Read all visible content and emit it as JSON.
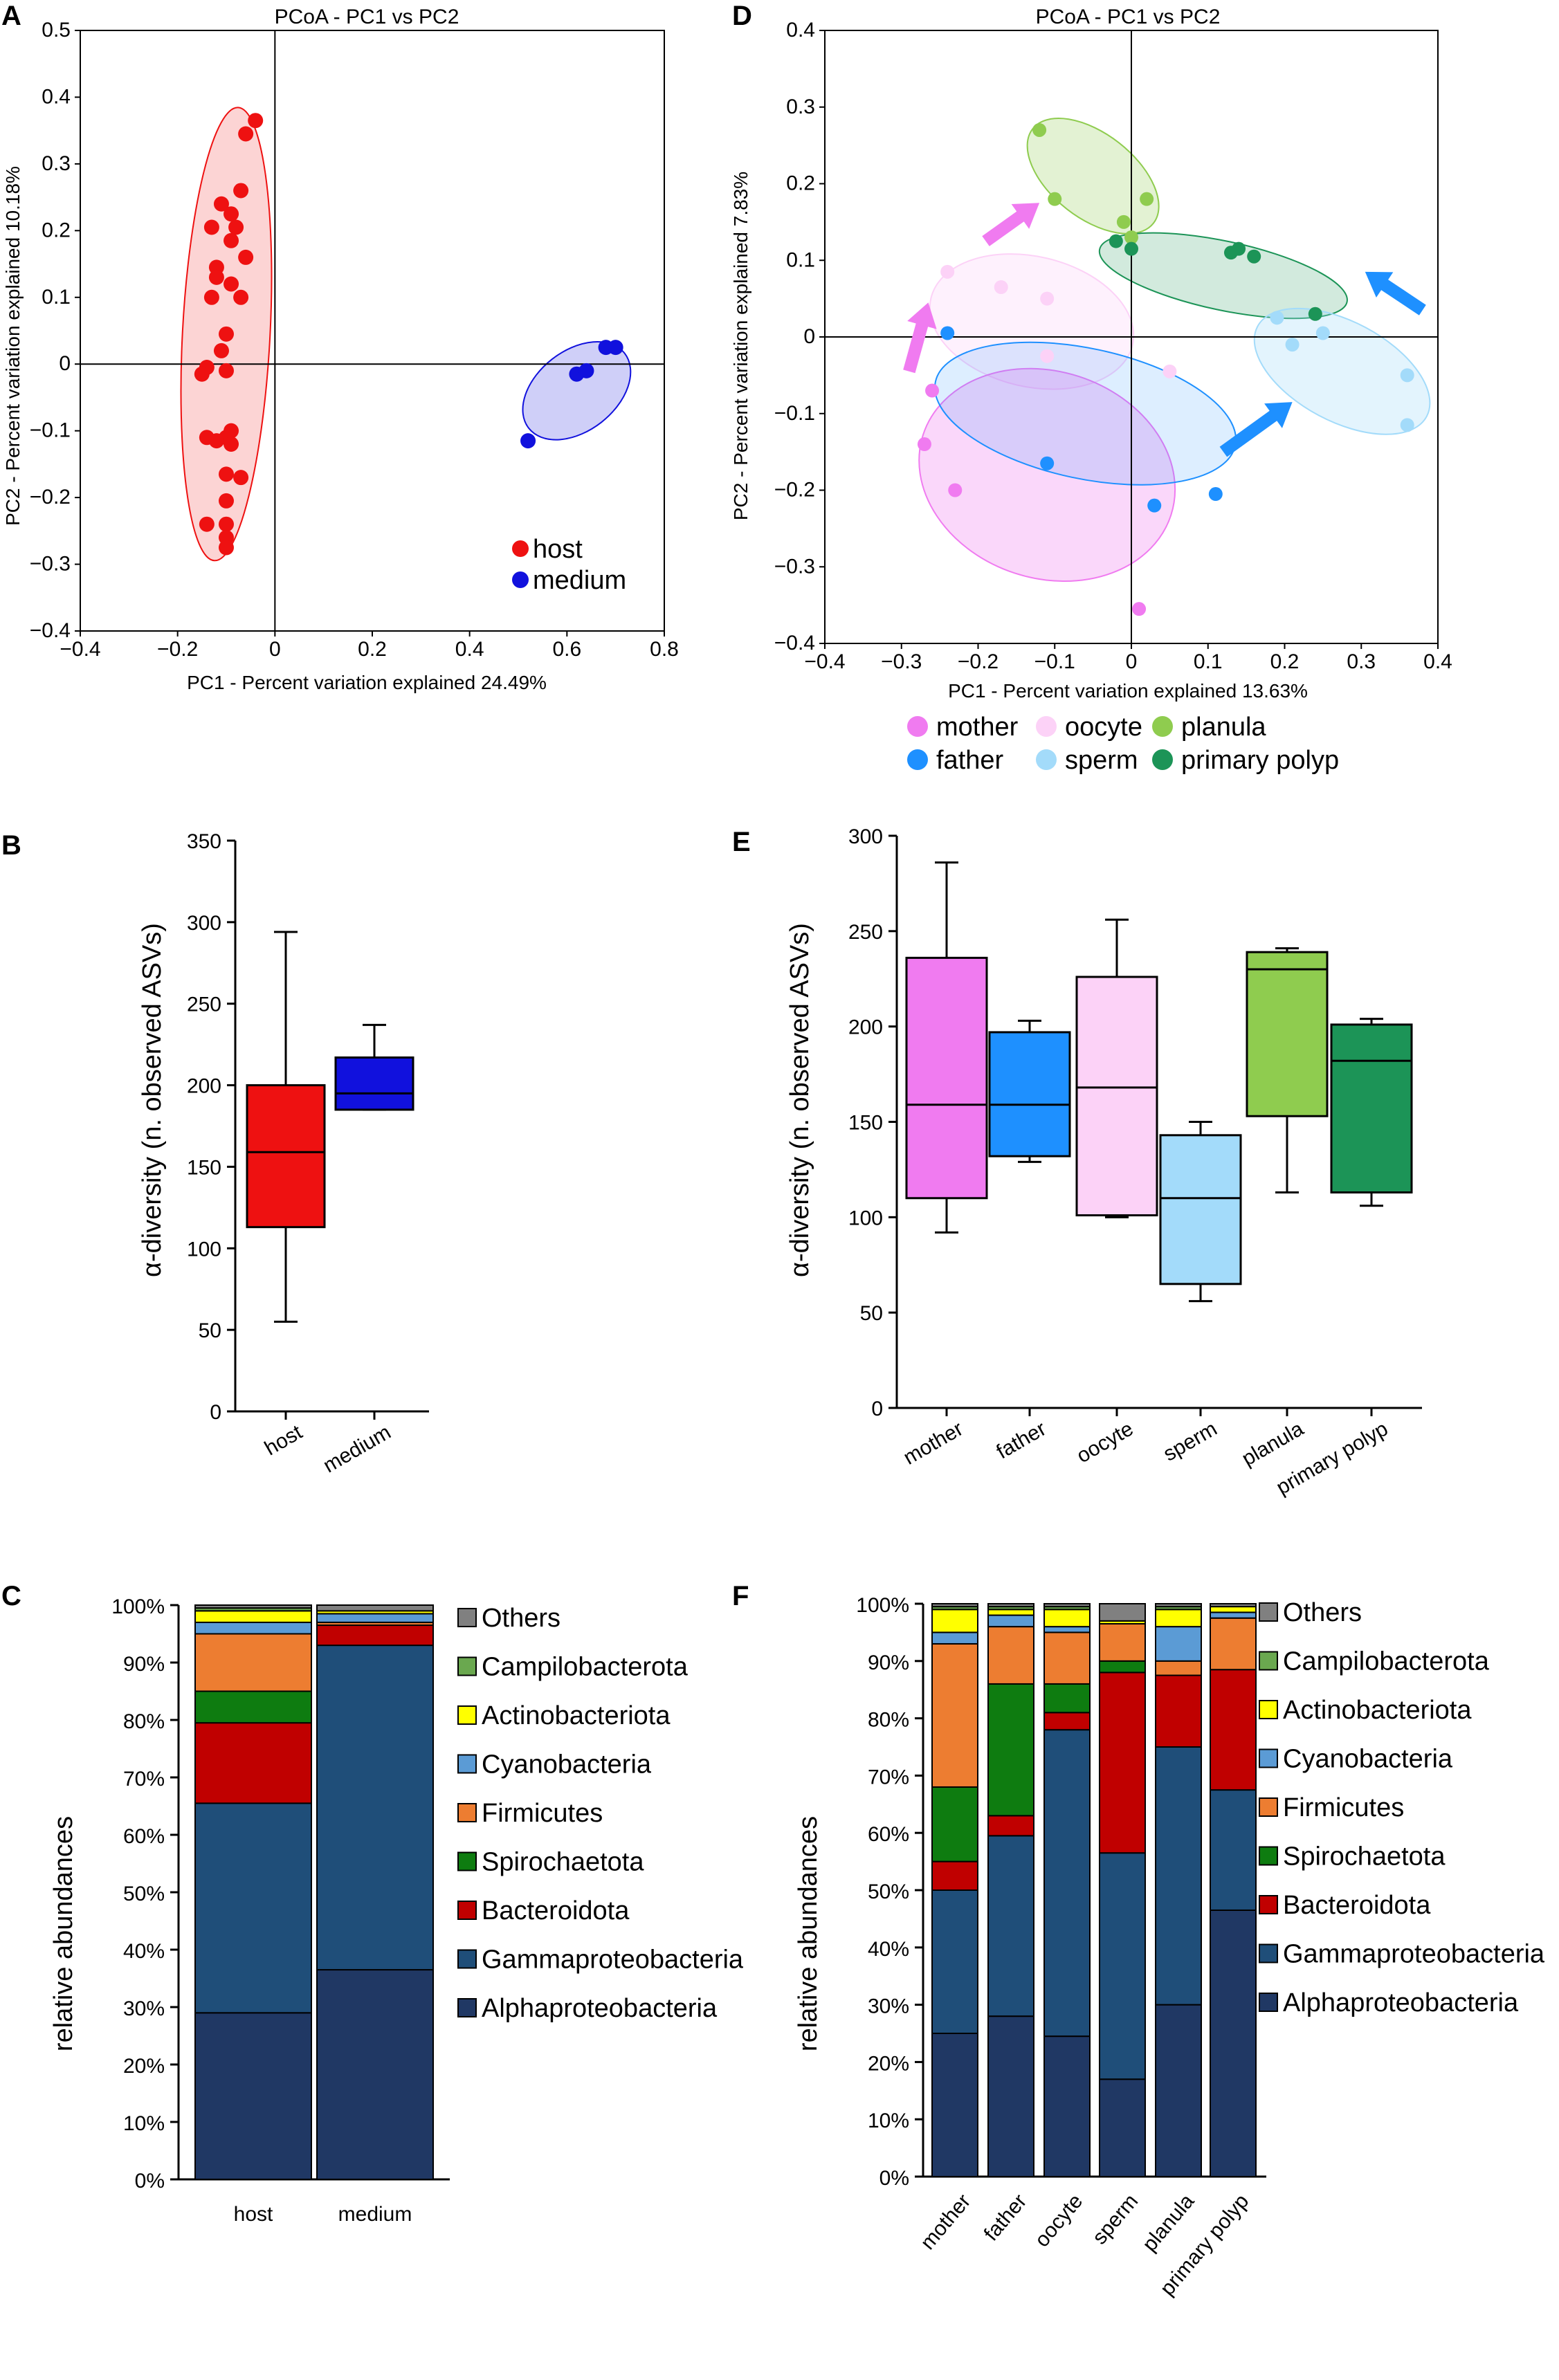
{
  "panels": {
    "A": {
      "letter": "A",
      "title": "PCoA - PC1 vs PC2",
      "xlabel": "PC1 - Percent variation explained 24.49%",
      "ylabel": "PC2 - Percent variation explained 10.18%",
      "xlim": [
        -0.4,
        0.8
      ],
      "ylim": [
        -0.4,
        0.5
      ],
      "xticks": [
        -0.4,
        -0.2,
        0,
        0.2,
        0.4,
        0.6,
        0.8
      ],
      "yticks": [
        -0.4,
        -0.3,
        -0.2,
        -0.1,
        0,
        0.1,
        0.2,
        0.3,
        0.4,
        0.5
      ],
      "xtick_labels": [
        "−0.4",
        "−0.2",
        "0",
        "0.2",
        "0.4",
        "0.6",
        "0.8"
      ],
      "ytick_labels": [
        "−0.4",
        "−0.3",
        "−0.2",
        "−0.1",
        "0",
        "0.1",
        "0.2",
        "0.3",
        "0.4",
        "0.5"
      ]
    },
    "B": {
      "letter": "B",
      "ylabel": "α-diversity (n. observed ASVs)",
      "ylim": [
        0,
        350
      ],
      "yticks": [
        0,
        50,
        100,
        150,
        200,
        250,
        300,
        350
      ]
    },
    "C": {
      "letter": "C",
      "ylabel": "relative abundances",
      "ytick_labels": [
        "0%",
        "10%",
        "20%",
        "30%",
        "40%",
        "50%",
        "60%",
        "70%",
        "80%",
        "90%",
        "100%"
      ]
    },
    "D": {
      "letter": "D",
      "title": "PCoA - PC1 vs PC2",
      "xlabel": "PC1 - Percent variation explained 13.63%",
      "ylabel": "PC2 - Percent variation explained 7.83%",
      "xlim": [
        -0.4,
        0.4
      ],
      "ylim": [
        -0.4,
        0.4
      ],
      "xticks": [
        -0.4,
        -0.3,
        -0.2,
        -0.1,
        0,
        0.1,
        0.2,
        0.3,
        0.4
      ],
      "yticks": [
        -0.4,
        -0.3,
        -0.2,
        -0.1,
        0,
        0.1,
        0.2,
        0.3,
        0.4
      ],
      "xtick_labels": [
        "−0.4",
        "−0.3",
        "−0.2",
        "−0.1",
        "0",
        "0.1",
        "0.2",
        "0.3",
        "0.4"
      ],
      "ytick_labels": [
        "−0.4",
        "−0.3",
        "−0.2",
        "−0.1",
        "0",
        "0.1",
        "0.2",
        "0.3",
        "0.4"
      ]
    },
    "E": {
      "letter": "E",
      "ylabel": "α-diversity (n. observed ASVs)",
      "ylim": [
        0,
        300
      ],
      "yticks": [
        0,
        50,
        100,
        150,
        200,
        250,
        300
      ]
    },
    "F": {
      "letter": "F",
      "ylabel": "relative abundances",
      "ytick_labels": [
        "0%",
        "10%",
        "20%",
        "30%",
        "40%",
        "50%",
        "60%",
        "70%",
        "80%",
        "90%",
        "100%"
      ]
    }
  },
  "colors": {
    "host": "#ee1111",
    "medium": "#1111dd",
    "mother": "#f07bf0",
    "father": "#1e90ff",
    "oocyte": "#fcd2f7",
    "sperm": "#a3dbfa",
    "planula": "#8fcc4f",
    "primary polyp": "#1c9457",
    "taxa": {
      "Others": "#808080",
      "Campilobacterota": "#6aa84f",
      "Actinobacteriota": "#ffff00",
      "Cyanobacteria": "#5b9bd5",
      "Firmicutes": "#ed7d31",
      "Spirochaetota": "#0e7c10",
      "Bacteroidota": "#c00000",
      "Gammaproteobacteria": "#1f4e79",
      "Alphaproteobacteria": "#203864"
    }
  },
  "chart_data": [
    {
      "id": "A",
      "type": "scatter",
      "title": "PCoA - PC1 vs PC2",
      "xlabel": "PC1 - Percent variation explained 24.49%",
      "ylabel": "PC2 - Percent variation explained 10.18%",
      "xlim": [
        -0.4,
        0.8
      ],
      "ylim": [
        -0.4,
        0.5
      ],
      "legend": [
        "host",
        "medium"
      ],
      "series": [
        {
          "name": "host",
          "points": [
            [
              -0.04,
              0.365
            ],
            [
              -0.06,
              0.345
            ],
            [
              -0.07,
              0.26
            ],
            [
              -0.11,
              0.24
            ],
            [
              -0.09,
              0.225
            ],
            [
              -0.13,
              0.205
            ],
            [
              -0.08,
              0.205
            ],
            [
              -0.09,
              0.185
            ],
            [
              -0.06,
              0.16
            ],
            [
              -0.12,
              0.145
            ],
            [
              -0.12,
              0.13
            ],
            [
              -0.09,
              0.12
            ],
            [
              -0.13,
              0.1
            ],
            [
              -0.07,
              0.1
            ],
            [
              -0.1,
              0.045
            ],
            [
              -0.11,
              0.02
            ],
            [
              -0.14,
              -0.005
            ],
            [
              -0.15,
              -0.015
            ],
            [
              -0.1,
              -0.01
            ],
            [
              -0.09,
              -0.1
            ],
            [
              -0.1,
              -0.11
            ],
            [
              -0.14,
              -0.11
            ],
            [
              -0.12,
              -0.115
            ],
            [
              -0.09,
              -0.12
            ],
            [
              -0.1,
              -0.165
            ],
            [
              -0.07,
              -0.17
            ],
            [
              -0.1,
              -0.205
            ],
            [
              -0.14,
              -0.24
            ],
            [
              -0.1,
              -0.24
            ],
            [
              -0.1,
              -0.26
            ],
            [
              -0.1,
              -0.275
            ]
          ]
        },
        {
          "name": "medium",
          "points": [
            [
              0.52,
              -0.115
            ],
            [
              0.62,
              -0.015
            ],
            [
              0.64,
              -0.01
            ],
            [
              0.68,
              0.025
            ],
            [
              0.7,
              0.025
            ]
          ]
        }
      ]
    },
    {
      "id": "B",
      "type": "box",
      "ylabel": "α-diversity (n. observed ASVs)",
      "ylim": [
        0,
        350
      ],
      "categories": [
        "host",
        "medium"
      ],
      "boxes": [
        {
          "name": "host",
          "min": 55,
          "q1": 113,
          "median": 159,
          "q3": 200,
          "max": 294
        },
        {
          "name": "medium",
          "min": 185,
          "q1": 185,
          "median": 195,
          "q3": 217,
          "max": 237
        }
      ]
    },
    {
      "id": "C",
      "type": "bar",
      "stacked": true,
      "ylabel": "relative abundances",
      "ylim": [
        0,
        100
      ],
      "categories": [
        "host",
        "medium"
      ],
      "series": [
        {
          "name": "Alphaproteobacteria",
          "values": [
            29,
            36.5
          ]
        },
        {
          "name": "Gammaproteobacteria",
          "values": [
            36.5,
            56.5
          ]
        },
        {
          "name": "Bacteroidota",
          "values": [
            14,
            3.5
          ]
        },
        {
          "name": "Spirochaetota",
          "values": [
            5.5,
            0
          ]
        },
        {
          "name": "Firmicutes",
          "values": [
            10,
            0.5
          ]
        },
        {
          "name": "Cyanobacteria",
          "values": [
            2,
            1.5
          ]
        },
        {
          "name": "Actinobacteriota",
          "values": [
            2,
            0.5
          ]
        },
        {
          "name": "Campilobacterota",
          "values": [
            0.5,
            0
          ]
        },
        {
          "name": "Others",
          "values": [
            0.5,
            1
          ]
        }
      ]
    },
    {
      "id": "D",
      "type": "scatter",
      "title": "PCoA - PC1 vs PC2",
      "xlabel": "PC1 - Percent variation explained 13.63%",
      "ylabel": "PC2 - Percent variation explained 7.83%",
      "xlim": [
        -0.4,
        0.4
      ],
      "ylim": [
        -0.4,
        0.4
      ],
      "legend": [
        "mother",
        "oocyte",
        "planula",
        "father",
        "sperm",
        "primary polyp"
      ],
      "series": [
        {
          "name": "mother",
          "points": [
            [
              -0.26,
              -0.07
            ],
            [
              -0.27,
              -0.14
            ],
            [
              -0.23,
              -0.2
            ],
            [
              0.01,
              -0.355
            ]
          ]
        },
        {
          "name": "father",
          "points": [
            [
              -0.24,
              0.005
            ],
            [
              -0.11,
              -0.165
            ],
            [
              0.03,
              -0.22
            ],
            [
              0.11,
              -0.205
            ]
          ]
        },
        {
          "name": "oocyte",
          "points": [
            [
              -0.24,
              0.085
            ],
            [
              -0.17,
              0.065
            ],
            [
              -0.11,
              0.05
            ],
            [
              -0.11,
              -0.025
            ],
            [
              0.05,
              -0.045
            ]
          ]
        },
        {
          "name": "sperm",
          "points": [
            [
              0.19,
              0.025
            ],
            [
              0.21,
              -0.01
            ],
            [
              0.25,
              0.005
            ],
            [
              0.36,
              -0.05
            ],
            [
              0.36,
              -0.115
            ]
          ]
        },
        {
          "name": "planula",
          "points": [
            [
              -0.12,
              0.27
            ],
            [
              -0.1,
              0.18
            ],
            [
              -0.01,
              0.15
            ],
            [
              0.0,
              0.13
            ],
            [
              0.02,
              0.18
            ]
          ]
        },
        {
          "name": "primary polyp",
          "points": [
            [
              -0.02,
              0.125
            ],
            [
              0.0,
              0.115
            ],
            [
              0.13,
              0.11
            ],
            [
              0.14,
              0.115
            ],
            [
              0.16,
              0.105
            ],
            [
              0.24,
              0.03
            ]
          ]
        }
      ]
    },
    {
      "id": "E",
      "type": "box",
      "ylabel": "α-diversity (n. observed ASVs)",
      "ylim": [
        0,
        300
      ],
      "categories": [
        "mother",
        "father",
        "oocyte",
        "sperm",
        "planula",
        "primary polyp"
      ],
      "boxes": [
        {
          "name": "mother",
          "min": 92,
          "q1": 110,
          "median": 159,
          "q3": 236,
          "max": 286
        },
        {
          "name": "father",
          "min": 129,
          "q1": 132,
          "median": 159,
          "q3": 197,
          "max": 203
        },
        {
          "name": "oocyte",
          "min": 100,
          "q1": 101,
          "median": 168,
          "q3": 226,
          "max": 256
        },
        {
          "name": "sperm",
          "min": 56,
          "q1": 65,
          "median": 110,
          "q3": 143,
          "max": 150
        },
        {
          "name": "planula",
          "min": 113,
          "q1": 153,
          "median": 230,
          "q3": 239,
          "max": 241
        },
        {
          "name": "primary polyp",
          "min": 106,
          "q1": 113,
          "median": 182,
          "q3": 201,
          "max": 204
        }
      ]
    },
    {
      "id": "F",
      "type": "bar",
      "stacked": true,
      "ylabel": "relative abundances",
      "ylim": [
        0,
        100
      ],
      "categories": [
        "mother",
        "father",
        "oocyte",
        "sperm",
        "planula",
        "primary polyp"
      ],
      "series": [
        {
          "name": "Alphaproteobacteria",
          "values": [
            25,
            28,
            24.5,
            17,
            30,
            46.5
          ]
        },
        {
          "name": "Gammaproteobacteria",
          "values": [
            25,
            31.5,
            53.5,
            39.5,
            45,
            21
          ]
        },
        {
          "name": "Bacteroidota",
          "values": [
            5,
            3.5,
            3,
            31.5,
            12.5,
            21
          ]
        },
        {
          "name": "Spirochaetota",
          "values": [
            13,
            23,
            5,
            2,
            0,
            0
          ]
        },
        {
          "name": "Firmicutes",
          "values": [
            25,
            10,
            9,
            6.5,
            2.5,
            9
          ]
        },
        {
          "name": "Cyanobacteria",
          "values": [
            2,
            2,
            1,
            0,
            6,
            1
          ]
        },
        {
          "name": "Actinobacteriota",
          "values": [
            4,
            1,
            3,
            0.5,
            3,
            1
          ]
        },
        {
          "name": "Campilobacterota",
          "values": [
            0.5,
            0.5,
            0.5,
            0,
            0.5,
            0
          ]
        },
        {
          "name": "Others",
          "values": [
            0.5,
            0.5,
            0.5,
            3,
            0.5,
            0.5
          ]
        }
      ]
    }
  ]
}
